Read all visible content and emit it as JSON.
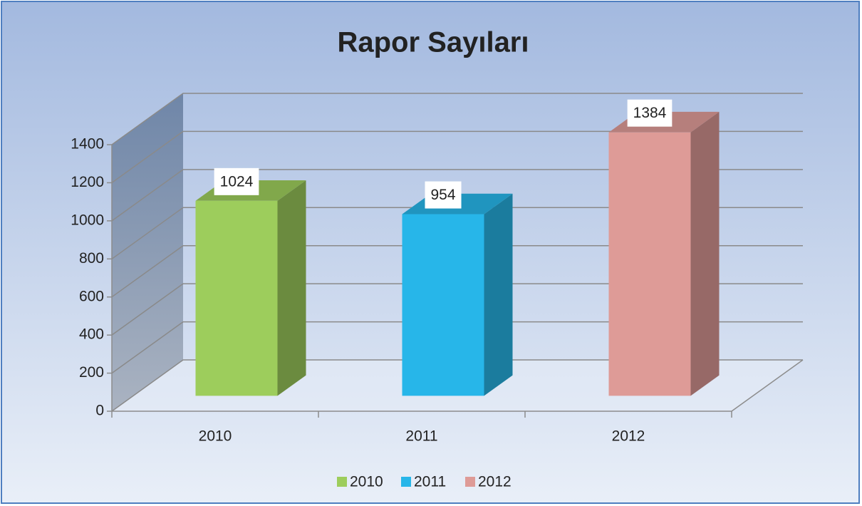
{
  "chart_data": {
    "type": "bar3d",
    "title": "Rapor Sayıları",
    "categories": [
      "2010",
      "2011",
      "2012"
    ],
    "values": [
      1024,
      954,
      1384
    ],
    "colors": [
      "#9dcd5c",
      "#27b6e9",
      "#de9b97"
    ],
    "ylim": [
      0,
      1400
    ],
    "yticks": [
      0,
      200,
      400,
      600,
      800,
      1000,
      1200,
      1400
    ],
    "grid": true,
    "legend": "bottom"
  }
}
